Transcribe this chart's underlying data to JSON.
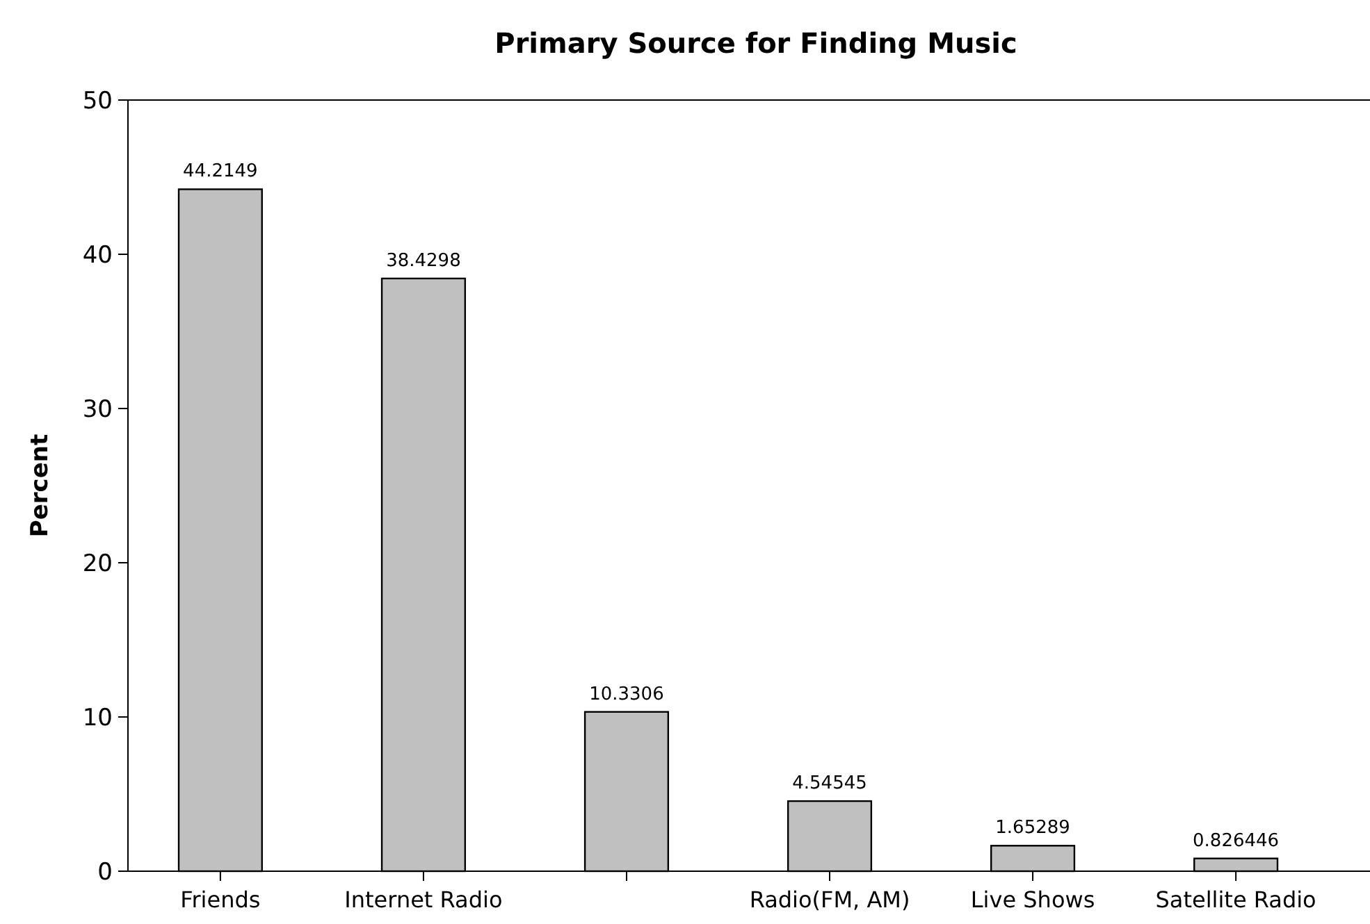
{
  "chart_data": {
    "type": "bar",
    "title": "Primary Source for Finding Music",
    "ylabel": "Percent",
    "categories": [
      "Friends",
      "Internet Radio",
      null,
      "Radio(FM, AM)",
      "Live Shows",
      "Satellite Radio"
    ],
    "values": [
      44.2149,
      38.4298,
      10.3306,
      4.54545,
      1.65289,
      0.826446
    ],
    "color": "#c0c0c0",
    "ylim": [
      0,
      50
    ],
    "yticks": [
      0,
      10,
      20,
      30,
      40,
      50
    ],
    "data_labels": true
  }
}
